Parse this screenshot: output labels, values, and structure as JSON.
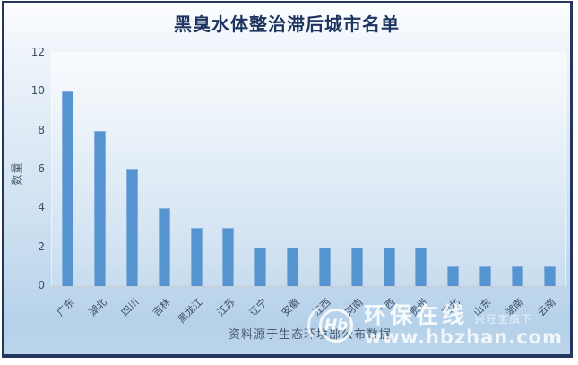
{
  "title": "黑臭水体整治滞后城市名单",
  "caption": "资料源于生态环境部公布数据",
  "y_axis_title": "数量",
  "watermark": {
    "logo_text": "Hb",
    "brand": "环保在线",
    "tagline": "兴旺宝旗下",
    "url": "www.hbzhan.com"
  },
  "colors": {
    "bar_fill": "#5593d1",
    "bar_border": "#86b1df",
    "frame_border": "#25365e",
    "title_text": "#1d3461",
    "axis_text": "#3f4d63",
    "background_top": "#fdfeff",
    "background_bottom": "#b4d1e9"
  },
  "chart_data": {
    "type": "bar",
    "title": "黑臭水体整治滞后城市名单",
    "categories": [
      "广东",
      "湖北",
      "四川",
      "吉林",
      "黑龙江",
      "江苏",
      "辽宁",
      "安徽",
      "江西",
      "河南",
      "广西",
      "贵州",
      "河北",
      "山东",
      "湖南",
      "云南"
    ],
    "values": [
      10,
      8,
      6,
      4,
      3,
      3,
      2,
      2,
      2,
      2,
      2,
      2,
      1,
      1,
      1,
      1
    ],
    "xlabel": "",
    "ylabel": "数量",
    "ylim": [
      0,
      12
    ],
    "yticks": [
      0,
      2,
      4,
      6,
      8,
      10,
      12
    ],
    "grid": false,
    "legend": false,
    "x_tick_rotation": 45,
    "source_note": "资料源于生态环境部公布数据"
  }
}
